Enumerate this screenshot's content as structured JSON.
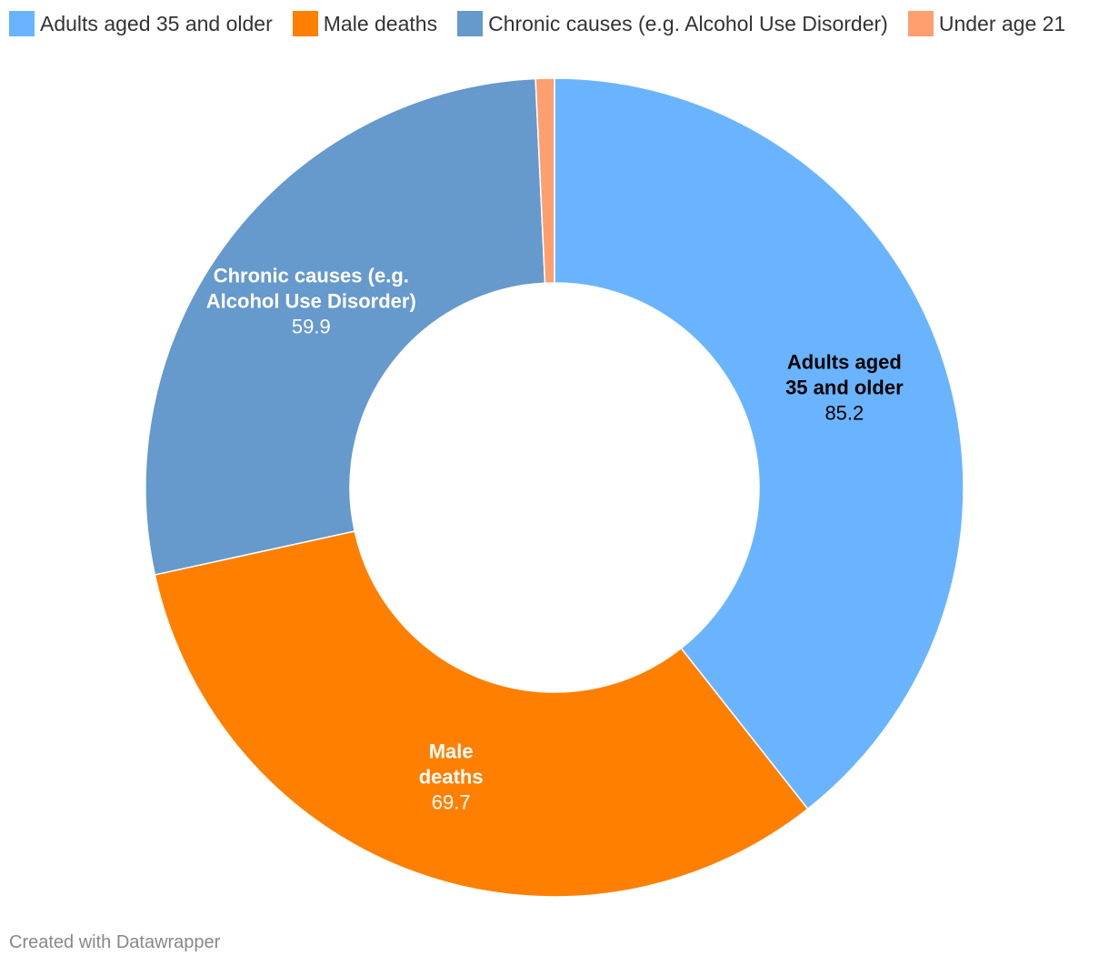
{
  "chart_data": {
    "type": "pie",
    "variant": "donut",
    "categories": [
      "Adults aged 35 and older",
      "Male deaths",
      "Chronic causes (e.g. Alcohol Use Disorder)",
      "Under age 21"
    ],
    "values": [
      85.2,
      69.7,
      59.9,
      1.6
    ],
    "value_labels": [
      "85.2",
      "69.7",
      "59.9",
      ""
    ],
    "slice_labels": [
      [
        "Adults aged",
        "35 and older"
      ],
      [
        "Male",
        "deaths"
      ],
      [
        "Chronic causes (e.g.",
        "Alcohol Use Disorder)"
      ],
      []
    ],
    "colors": [
      "#6ab4ff",
      "#ff7f00",
      "#6699cc",
      "#ff9e6e"
    ],
    "label_colors": [
      "#000000",
      "#ffffff",
      "#ffffff",
      "#ffffff"
    ],
    "legend_position": "top",
    "credit": "Created with Datawrapper"
  }
}
